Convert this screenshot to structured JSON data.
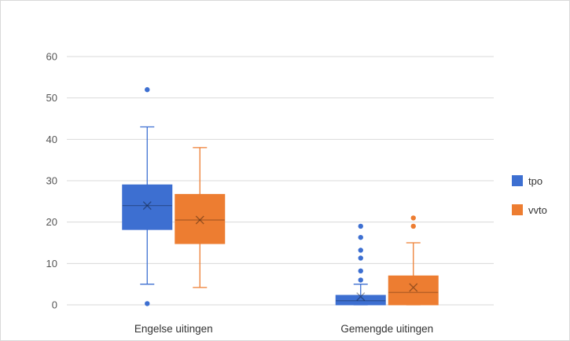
{
  "chart_data": {
    "type": "box",
    "title": "",
    "xlabel": "",
    "ylabel": "",
    "ylim": [
      0,
      60
    ],
    "yticks": [
      0,
      10,
      20,
      30,
      40,
      50,
      60
    ],
    "grid": true,
    "legend_position": "right",
    "categories": [
      "Engelse uitingen",
      "Gemengde uitingen"
    ],
    "series": [
      {
        "name": "tpo",
        "color": "#3d6fd1",
        "boxes": [
          {
            "min": 5,
            "q1": 18.2,
            "median": 24,
            "q3": 29,
            "max": 43,
            "mean": 24,
            "outliers": [
              52,
              0.3
            ]
          },
          {
            "min": 0,
            "q1": 0,
            "median": 1,
            "q3": 2.3,
            "max": 5,
            "mean": 2,
            "outliers": [
              19,
              16.3,
              13.2,
              11.3,
              8.2,
              6
            ]
          }
        ]
      },
      {
        "name": "vvto",
        "color": "#ed7d31",
        "boxes": [
          {
            "min": 4.2,
            "q1": 14.8,
            "median": 20.5,
            "q3": 26.7,
            "max": 38,
            "mean": 20.5,
            "outliers": []
          },
          {
            "min": 0,
            "q1": 0,
            "median": 3,
            "q3": 7,
            "max": 15,
            "mean": 4.2,
            "outliers": [
              21,
              19
            ]
          }
        ]
      }
    ]
  }
}
